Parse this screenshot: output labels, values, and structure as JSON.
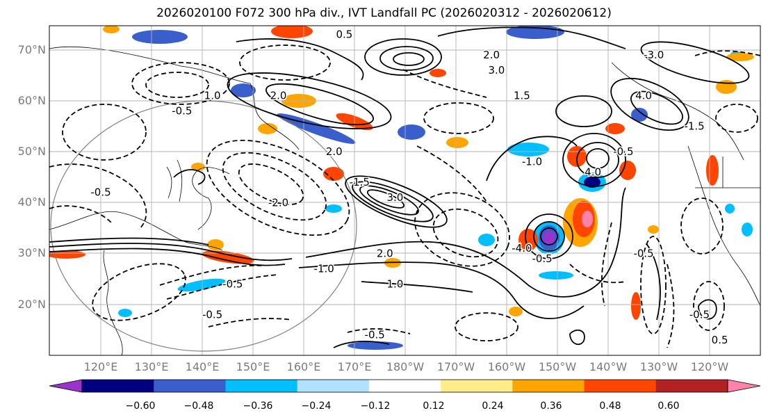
{
  "title": "2026020100 F072 300 hPa div., IVT Landfall PC (2026020312 - 2026020612)",
  "lat_labels": [
    "70°N",
    "60°N",
    "50°N",
    "40°N",
    "30°N",
    "20°N"
  ],
  "lon_labels": [
    "120°E",
    "130°E",
    "140°E",
    "150°E",
    "160°E",
    "170°E",
    "180°W",
    "170°W",
    "160°W",
    "150°W",
    "140°W",
    "130°W",
    "120°W"
  ],
  "colorbar": {
    "colors": [
      "#9933cc",
      "#000080",
      "#3a5fcd",
      "#00bfff",
      "#b0e2ff",
      "#ffffff",
      "#ffec8b",
      "#ffa500",
      "#ff4500",
      "#b22222",
      "#ff82ab"
    ],
    "tick_labels": [
      "−0.60",
      "−0.48",
      "−0.36",
      "−0.24",
      "−0.12",
      "0.12",
      "0.24",
      "0.36",
      "0.48",
      "0.60"
    ]
  },
  "contour_labels": [
    {
      "text": "0.5",
      "lon": 168,
      "lat": 73
    },
    {
      "text": "2.0",
      "lon": -163,
      "lat": 69
    },
    {
      "text": "3.0",
      "lon": -162,
      "lat": 66
    },
    {
      "text": "1.5",
      "lon": -157,
      "lat": 61
    },
    {
      "text": "-0.5",
      "lon": 136,
      "lat": 58
    },
    {
      "text": "2.0",
      "lon": 155,
      "lat": 61
    },
    {
      "text": "1.0",
      "lon": 142,
      "lat": 61
    },
    {
      "text": "2.0",
      "lon": 166,
      "lat": 50
    },
    {
      "text": "-1.0",
      "lon": -155,
      "lat": 48
    },
    {
      "text": "-1.5",
      "lon": 171,
      "lat": 44
    },
    {
      "text": "-2.0",
      "lon": 155,
      "lat": 40
    },
    {
      "text": "3.0",
      "lon": 178,
      "lat": 41
    },
    {
      "text": "-0.5",
      "lon": 120,
      "lat": 42
    },
    {
      "text": "-4.0",
      "lon": -157,
      "lat": 31
    },
    {
      "text": "2.0",
      "lon": 176,
      "lat": 30
    },
    {
      "text": "-1.0",
      "lon": 164,
      "lat": 27
    },
    {
      "text": "1.0",
      "lon": 178,
      "lat": 24
    },
    {
      "text": "-0.5",
      "lon": 146,
      "lat": 24
    },
    {
      "text": "-0.5",
      "lon": 174,
      "lat": 14
    },
    {
      "text": "-0.5",
      "lon": -153,
      "lat": 29
    },
    {
      "text": "-0.5",
      "lon": -137,
      "lat": 50
    },
    {
      "text": "4.0",
      "lon": -133,
      "lat": 61
    },
    {
      "text": "-3.0",
      "lon": -131,
      "lat": 69
    },
    {
      "text": "-1.5",
      "lon": -123,
      "lat": 55
    },
    {
      "text": "-0.5",
      "lon": -122,
      "lat": 18
    },
    {
      "text": "0.5",
      "lon": -118,
      "lat": 13
    },
    {
      "text": "-0.5",
      "lon": -133,
      "lat": 30
    },
    {
      "text": "4.0",
      "lon": -143,
      "lat": 46
    },
    {
      "text": "-0.5",
      "lon": 142,
      "lat": 18
    }
  ]
}
